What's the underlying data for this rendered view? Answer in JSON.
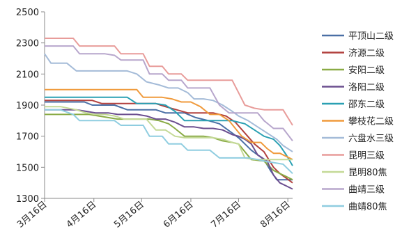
{
  "chart_data": {
    "type": "line",
    "title": "",
    "xlabel": "",
    "ylabel": "",
    "ylim": [
      1300,
      2500
    ],
    "yticks": [
      1300,
      1500,
      1700,
      1900,
      2100,
      2300,
      2500
    ],
    "xticks": [
      {
        "label": "3月16日",
        "x": 0
      },
      {
        "label": "4月16日",
        "x": 31
      },
      {
        "label": "5月16日",
        "x": 61
      },
      {
        "label": "6月16日",
        "x": 92
      },
      {
        "label": "7月16日",
        "x": 122
      },
      {
        "label": "8月16日",
        "x": 153
      }
    ],
    "xlim": [
      0,
      156
    ],
    "grid": "none",
    "legend_position": "right",
    "series": [
      {
        "name": "平顶山二级",
        "color": "#4a6fa5",
        "points": [
          [
            0,
            1920
          ],
          [
            5,
            1920
          ],
          [
            10,
            1920
          ],
          [
            15,
            1920
          ],
          [
            20,
            1920
          ],
          [
            25,
            1920
          ],
          [
            30,
            1900
          ],
          [
            36,
            1900
          ],
          [
            44,
            1900
          ],
          [
            52,
            1870
          ],
          [
            62,
            1870
          ],
          [
            70,
            1870
          ],
          [
            76,
            1850
          ],
          [
            83,
            1850
          ],
          [
            88,
            1850
          ],
          [
            95,
            1820
          ],
          [
            103,
            1800
          ],
          [
            110,
            1780
          ],
          [
            118,
            1720
          ],
          [
            122,
            1690
          ],
          [
            126,
            1650
          ],
          [
            130,
            1610
          ],
          [
            138,
            1550
          ],
          [
            142,
            1480
          ],
          [
            146,
            1420
          ],
          [
            150,
            1420
          ],
          [
            154,
            1420
          ],
          [
            156,
            1420
          ]
        ]
      },
      {
        "name": "济源二级",
        "color": "#b2413e",
        "points": [
          [
            0,
            1930
          ],
          [
            10,
            1930
          ],
          [
            20,
            1930
          ],
          [
            30,
            1930
          ],
          [
            36,
            1910
          ],
          [
            44,
            1910
          ],
          [
            52,
            1910
          ],
          [
            62,
            1910
          ],
          [
            70,
            1910
          ],
          [
            76,
            1890
          ],
          [
            83,
            1870
          ],
          [
            90,
            1850
          ],
          [
            98,
            1850
          ],
          [
            106,
            1850
          ],
          [
            114,
            1830
          ],
          [
            120,
            1790
          ],
          [
            126,
            1720
          ],
          [
            132,
            1650
          ],
          [
            138,
            1600
          ],
          [
            144,
            1500
          ],
          [
            148,
            1460
          ],
          [
            152,
            1430
          ],
          [
            156,
            1400
          ]
        ]
      },
      {
        "name": "安阳二级",
        "color": "#8aab45",
        "points": [
          [
            0,
            1840
          ],
          [
            10,
            1840
          ],
          [
            20,
            1840
          ],
          [
            28,
            1840
          ],
          [
            34,
            1830
          ],
          [
            40,
            1820
          ],
          [
            46,
            1810
          ],
          [
            52,
            1810
          ],
          [
            60,
            1810
          ],
          [
            66,
            1810
          ],
          [
            72,
            1800
          ],
          [
            78,
            1780
          ],
          [
            82,
            1750
          ],
          [
            88,
            1700
          ],
          [
            94,
            1700
          ],
          [
            100,
            1700
          ],
          [
            106,
            1690
          ],
          [
            112,
            1670
          ],
          [
            118,
            1660
          ],
          [
            122,
            1650
          ],
          [
            126,
            1600
          ],
          [
            130,
            1550
          ],
          [
            138,
            1540
          ],
          [
            144,
            1480
          ],
          [
            148,
            1460
          ],
          [
            152,
            1440
          ],
          [
            156,
            1420
          ]
        ]
      },
      {
        "name": "洛阳二级",
        "color": "#6b4e8f",
        "points": [
          [
            0,
            1870
          ],
          [
            10,
            1870
          ],
          [
            20,
            1870
          ],
          [
            26,
            1860
          ],
          [
            32,
            1850
          ],
          [
            40,
            1850
          ],
          [
            46,
            1840
          ],
          [
            52,
            1840
          ],
          [
            58,
            1840
          ],
          [
            64,
            1830
          ],
          [
            70,
            1810
          ],
          [
            76,
            1810
          ],
          [
            82,
            1790
          ],
          [
            88,
            1760
          ],
          [
            94,
            1760
          ],
          [
            100,
            1750
          ],
          [
            106,
            1750
          ],
          [
            112,
            1740
          ],
          [
            118,
            1710
          ],
          [
            122,
            1700
          ],
          [
            126,
            1680
          ],
          [
            130,
            1650
          ],
          [
            134,
            1580
          ],
          [
            140,
            1540
          ],
          [
            144,
            1450
          ],
          [
            148,
            1400
          ],
          [
            152,
            1380
          ],
          [
            156,
            1360
          ]
        ]
      },
      {
        "name": "邵东二级",
        "color": "#2aa0b3",
        "points": [
          [
            0,
            1950
          ],
          [
            10,
            1950
          ],
          [
            20,
            1950
          ],
          [
            30,
            1950
          ],
          [
            40,
            1950
          ],
          [
            48,
            1950
          ],
          [
            52,
            1950
          ],
          [
            58,
            1910
          ],
          [
            64,
            1910
          ],
          [
            70,
            1910
          ],
          [
            76,
            1900
          ],
          [
            82,
            1860
          ],
          [
            88,
            1800
          ],
          [
            94,
            1800
          ],
          [
            100,
            1800
          ],
          [
            106,
            1800
          ],
          [
            112,
            1800
          ],
          [
            118,
            1800
          ],
          [
            122,
            1790
          ],
          [
            126,
            1780
          ],
          [
            132,
            1740
          ],
          [
            138,
            1700
          ],
          [
            144,
            1680
          ],
          [
            148,
            1640
          ],
          [
            152,
            1580
          ],
          [
            156,
            1510
          ]
        ]
      },
      {
        "name": "攀枝花二级",
        "color": "#f09a3b",
        "points": [
          [
            0,
            2000
          ],
          [
            10,
            2000
          ],
          [
            20,
            2000
          ],
          [
            30,
            2000
          ],
          [
            40,
            2000
          ],
          [
            50,
            2000
          ],
          [
            58,
            2000
          ],
          [
            62,
            1950
          ],
          [
            68,
            1950
          ],
          [
            74,
            1950
          ],
          [
            80,
            1940
          ],
          [
            86,
            1920
          ],
          [
            92,
            1920
          ],
          [
            98,
            1890
          ],
          [
            104,
            1840
          ],
          [
            110,
            1840
          ],
          [
            116,
            1800
          ],
          [
            120,
            1750
          ],
          [
            124,
            1700
          ],
          [
            130,
            1660
          ],
          [
            136,
            1660
          ],
          [
            140,
            1620
          ],
          [
            144,
            1590
          ],
          [
            148,
            1590
          ],
          [
            152,
            1570
          ],
          [
            156,
            1550
          ]
        ]
      },
      {
        "name": "六盘水三级",
        "color": "#a4bbd8",
        "points": [
          [
            0,
            2230
          ],
          [
            4,
            2170
          ],
          [
            8,
            2170
          ],
          [
            14,
            2170
          ],
          [
            20,
            2120
          ],
          [
            26,
            2120
          ],
          [
            32,
            2120
          ],
          [
            40,
            2120
          ],
          [
            46,
            2120
          ],
          [
            52,
            2120
          ],
          [
            58,
            2100
          ],
          [
            64,
            2050
          ],
          [
            72,
            2030
          ],
          [
            78,
            2010
          ],
          [
            84,
            2010
          ],
          [
            90,
            1980
          ],
          [
            94,
            1940
          ],
          [
            100,
            1940
          ],
          [
            106,
            1930
          ],
          [
            112,
            1900
          ],
          [
            118,
            1860
          ],
          [
            122,
            1830
          ],
          [
            128,
            1800
          ],
          [
            134,
            1760
          ],
          [
            140,
            1720
          ],
          [
            146,
            1680
          ],
          [
            150,
            1640
          ],
          [
            156,
            1600
          ]
        ]
      },
      {
        "name": "昆明三级",
        "color": "#e89c9a",
        "points": [
          [
            0,
            2330
          ],
          [
            10,
            2330
          ],
          [
            18,
            2330
          ],
          [
            22,
            2280
          ],
          [
            30,
            2280
          ],
          [
            38,
            2280
          ],
          [
            44,
            2280
          ],
          [
            48,
            2230
          ],
          [
            56,
            2230
          ],
          [
            62,
            2230
          ],
          [
            66,
            2150
          ],
          [
            74,
            2150
          ],
          [
            78,
            2100
          ],
          [
            86,
            2100
          ],
          [
            90,
            2060
          ],
          [
            98,
            2060
          ],
          [
            106,
            2060
          ],
          [
            114,
            2060
          ],
          [
            118,
            2060
          ],
          [
            122,
            1980
          ],
          [
            126,
            1900
          ],
          [
            132,
            1880
          ],
          [
            138,
            1870
          ],
          [
            144,
            1870
          ],
          [
            150,
            1870
          ],
          [
            156,
            1770
          ]
        ]
      },
      {
        "name": "昆明80焦",
        "color": "#c4d996",
        "points": [
          [
            0,
            1890
          ],
          [
            10,
            1890
          ],
          [
            20,
            1870
          ],
          [
            26,
            1850
          ],
          [
            32,
            1840
          ],
          [
            38,
            1840
          ],
          [
            44,
            1830
          ],
          [
            50,
            1810
          ],
          [
            58,
            1810
          ],
          [
            64,
            1810
          ],
          [
            70,
            1740
          ],
          [
            76,
            1740
          ],
          [
            82,
            1700
          ],
          [
            88,
            1690
          ],
          [
            94,
            1690
          ],
          [
            100,
            1690
          ],
          [
            106,
            1690
          ],
          [
            112,
            1680
          ],
          [
            118,
            1660
          ],
          [
            122,
            1650
          ],
          [
            126,
            1560
          ],
          [
            132,
            1550
          ],
          [
            138,
            1550
          ],
          [
            144,
            1550
          ],
          [
            150,
            1550
          ],
          [
            156,
            1550
          ]
        ]
      },
      {
        "name": "曲靖三级",
        "color": "#b7a6cc",
        "points": [
          [
            0,
            2280
          ],
          [
            10,
            2280
          ],
          [
            18,
            2280
          ],
          [
            22,
            2230
          ],
          [
            30,
            2230
          ],
          [
            38,
            2230
          ],
          [
            44,
            2220
          ],
          [
            48,
            2190
          ],
          [
            56,
            2190
          ],
          [
            62,
            2190
          ],
          [
            66,
            2100
          ],
          [
            74,
            2100
          ],
          [
            78,
            2060
          ],
          [
            86,
            2060
          ],
          [
            90,
            2010
          ],
          [
            98,
            2010
          ],
          [
            104,
            2010
          ],
          [
            110,
            1900
          ],
          [
            116,
            1850
          ],
          [
            122,
            1850
          ],
          [
            128,
            1850
          ],
          [
            134,
            1850
          ],
          [
            138,
            1800
          ],
          [
            144,
            1750
          ],
          [
            150,
            1750
          ],
          [
            156,
            1670
          ]
        ]
      },
      {
        "name": "曲靖80焦",
        "color": "#8fcde0",
        "points": [
          [
            0,
            1870
          ],
          [
            10,
            1870
          ],
          [
            18,
            1840
          ],
          [
            22,
            1800
          ],
          [
            30,
            1800
          ],
          [
            38,
            1800
          ],
          [
            44,
            1800
          ],
          [
            48,
            1770
          ],
          [
            56,
            1770
          ],
          [
            62,
            1770
          ],
          [
            66,
            1700
          ],
          [
            74,
            1700
          ],
          [
            78,
            1650
          ],
          [
            86,
            1650
          ],
          [
            90,
            1610
          ],
          [
            98,
            1610
          ],
          [
            104,
            1610
          ],
          [
            110,
            1560
          ],
          [
            116,
            1560
          ],
          [
            122,
            1560
          ],
          [
            128,
            1560
          ],
          [
            134,
            1550
          ],
          [
            138,
            1540
          ],
          [
            144,
            1530
          ],
          [
            150,
            1520
          ],
          [
            156,
            1460
          ]
        ]
      }
    ]
  }
}
